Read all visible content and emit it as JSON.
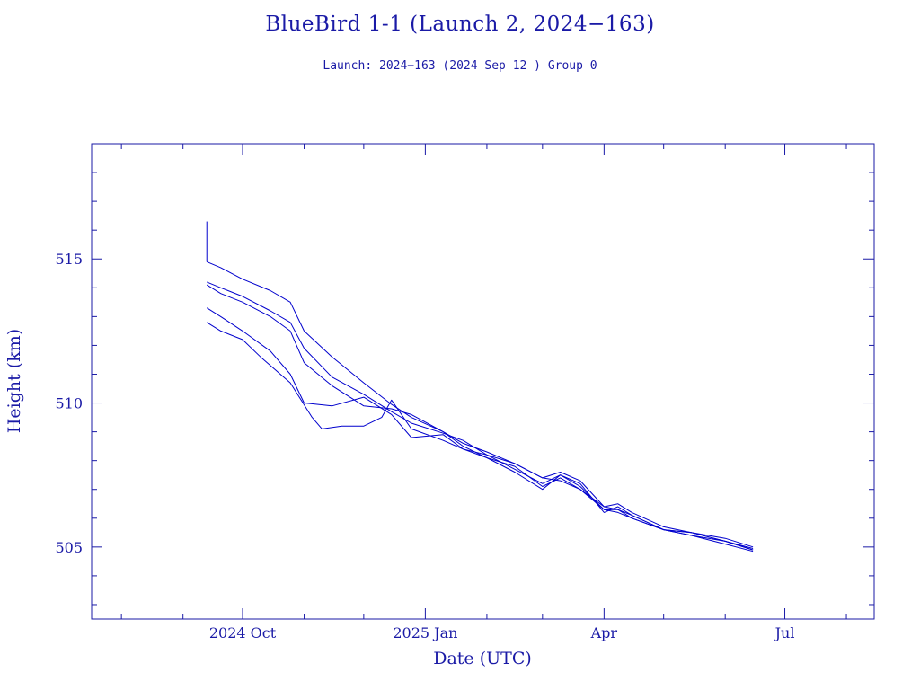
{
  "title": "BlueBird 1‑1 (Launch 2, 2024−163)",
  "subtitle": "Launch: 2024−163  (2024 Sep 12 )  Group 0",
  "chart_data": {
    "type": "line",
    "title": "BlueBird 1‑1 (Launch 2, 2024−163)",
    "subtitle": "Launch: 2024−163  (2024 Sep 12 )  Group 0",
    "xlabel": "Date (UTC)",
    "ylabel": "Height (km)",
    "xlim": [
      "2024-07-17",
      "2025-08-15"
    ],
    "ylim": [
      502.5,
      519.0
    ],
    "x_ticks": [
      {
        "date": "2024-10-01",
        "label": "2024 Oct"
      },
      {
        "date": "2025-01-01",
        "label": "2025 Jan"
      },
      {
        "date": "2025-04-01",
        "label": "Apr"
      },
      {
        "date": "2025-07-01",
        "label": "Jul"
      }
    ],
    "y_ticks": [
      505,
      510,
      515
    ],
    "color": "#0000cd",
    "grid": false,
    "series": [
      {
        "x": [
          "2024-09-13",
          "2024-09-20",
          "2024-10-01",
          "2024-10-15",
          "2024-10-25",
          "2024-11-01",
          "2024-11-15",
          "2024-12-01",
          "2024-12-15",
          "2024-12-25",
          "2025-01-10",
          "2025-01-20",
          "2025-02-01",
          "2025-02-15",
          "2025-03-01",
          "2025-03-10",
          "2025-03-20",
          "2025-04-01",
          "2025-04-08",
          "2025-04-15",
          "2025-05-01",
          "2025-05-15",
          "2025-06-01",
          "2025-06-15"
        ],
        "y": [
          514.9,
          514.7,
          514.3,
          513.9,
          513.5,
          512.5,
          511.6,
          510.7,
          509.95,
          509.5,
          509.0,
          508.6,
          508.3,
          507.9,
          507.4,
          507.3,
          507.0,
          506.4,
          506.5,
          506.2,
          505.7,
          505.5,
          505.2,
          504.95
        ]
      },
      {
        "x": [
          "2024-09-13",
          "2024-09-20",
          "2024-10-01",
          "2024-10-15",
          "2024-10-25",
          "2024-11-01",
          "2024-11-15",
          "2024-12-01",
          "2024-12-15",
          "2024-12-25",
          "2025-01-10",
          "2025-01-20",
          "2025-02-01",
          "2025-02-15",
          "2025-03-01",
          "2025-03-10",
          "2025-03-20",
          "2025-04-01",
          "2025-04-08",
          "2025-04-15",
          "2025-05-01",
          "2025-05-15",
          "2025-06-01",
          "2025-06-15"
        ],
        "y": [
          514.2,
          514.0,
          513.7,
          513.2,
          512.8,
          511.9,
          510.9,
          510.3,
          509.7,
          509.3,
          508.95,
          508.7,
          508.2,
          507.9,
          507.4,
          507.6,
          507.3,
          506.4,
          506.3,
          506.1,
          505.6,
          505.5,
          505.3,
          505.0
        ]
      },
      {
        "x": [
          "2024-09-13",
          "2024-09-20",
          "2024-10-01",
          "2024-10-15",
          "2024-10-25",
          "2024-11-01",
          "2024-11-15",
          "2024-12-01",
          "2024-12-15",
          "2024-12-25",
          "2025-01-10",
          "2025-01-20",
          "2025-02-01",
          "2025-02-15",
          "2025-03-01",
          "2025-03-10",
          "2025-03-20",
          "2025-04-01",
          "2025-04-08",
          "2025-04-15",
          "2025-05-01",
          "2025-05-15",
          "2025-06-01",
          "2025-06-15"
        ],
        "y": [
          514.1,
          513.8,
          513.5,
          513.0,
          512.5,
          511.4,
          510.6,
          509.9,
          509.8,
          509.6,
          509.0,
          508.5,
          508.1,
          507.8,
          507.1,
          507.4,
          507.0,
          506.3,
          506.2,
          506.0,
          505.6,
          505.4,
          505.2,
          504.9
        ]
      },
      {
        "x": [
          "2024-09-13",
          "2024-09-20",
          "2024-10-01",
          "2024-10-15",
          "2024-10-25",
          "2024-11-01",
          "2024-11-15",
          "2024-12-01",
          "2024-12-15",
          "2024-12-25",
          "2025-01-10",
          "2025-01-20",
          "2025-02-01",
          "2025-02-15",
          "2025-03-01",
          "2025-03-10",
          "2025-03-20",
          "2025-04-01",
          "2025-04-08",
          "2025-04-15",
          "2025-05-01",
          "2025-05-15",
          "2025-06-01",
          "2025-06-15"
        ],
        "y": [
          513.3,
          513.0,
          512.5,
          511.8,
          511.0,
          510.0,
          509.9,
          510.2,
          509.6,
          508.8,
          508.9,
          508.4,
          508.1,
          507.6,
          507.0,
          507.5,
          507.2,
          506.2,
          506.4,
          506.1,
          505.6,
          505.5,
          505.2,
          504.9
        ]
      },
      {
        "x": [
          "2024-09-13",
          "2024-09-20",
          "2024-10-01",
          "2024-10-10",
          "2024-10-25",
          "2024-11-05",
          "2024-11-10",
          "2024-11-20",
          "2024-12-01",
          "2024-12-10",
          "2024-12-15",
          "2024-12-25",
          "2025-01-10",
          "2025-01-20",
          "2025-02-01",
          "2025-02-15",
          "2025-03-01",
          "2025-03-10",
          "2025-03-20",
          "2025-04-01",
          "2025-04-08",
          "2025-04-15",
          "2025-05-01",
          "2025-05-15",
          "2025-06-01",
          "2025-06-15"
        ],
        "y": [
          512.8,
          512.5,
          512.2,
          511.6,
          510.7,
          509.5,
          509.1,
          509.2,
          509.2,
          509.5,
          510.1,
          509.1,
          508.7,
          508.4,
          508.2,
          507.7,
          507.2,
          507.5,
          507.1,
          506.3,
          506.3,
          506.0,
          505.6,
          505.4,
          505.1,
          504.85
        ]
      }
    ]
  }
}
